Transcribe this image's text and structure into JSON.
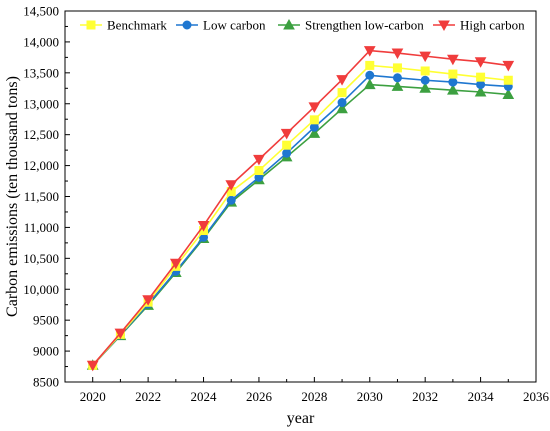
{
  "chart_data": {
    "type": "line",
    "xlabel": "year",
    "ylabel": "Carbon emissions (ten thousand tons)",
    "xlim": [
      2019,
      2036
    ],
    "ylim": [
      8500,
      14500
    ],
    "xticks": [
      2020,
      2022,
      2024,
      2026,
      2028,
      2030,
      2032,
      2034,
      2036
    ],
    "yticks": [
      8500,
      9000,
      9500,
      10000,
      10500,
      11000,
      11500,
      12000,
      12500,
      13000,
      13500,
      14000,
      14500
    ],
    "xtick_labels": [
      "2020",
      "2022",
      "2024",
      "2026",
      "2028",
      "2030",
      "2032",
      "2034",
      "2036"
    ],
    "ytick_labels": [
      "8500",
      "9000",
      "9500",
      "10,000",
      "10,500",
      "11,000",
      "11,500",
      "12,000",
      "12,500",
      "13,000",
      "13,500",
      "14,000",
      "14,500"
    ],
    "grid": false,
    "legend_position": "top",
    "x": [
      2020,
      2021,
      2022,
      2023,
      2024,
      2025,
      2026,
      2027,
      2028,
      2029,
      2030,
      2031,
      2032,
      2033,
      2034,
      2035
    ],
    "series": [
      {
        "name": "Benchmark",
        "color": "#ffff33",
        "marker": "square",
        "values": [
          8770,
          9270,
          9790,
          10370,
          10950,
          11580,
          11920,
          12330,
          12740,
          13180,
          13620,
          13580,
          13530,
          13480,
          13430,
          13380
        ]
      },
      {
        "name": "Low carbon",
        "color": "#1f77d0",
        "marker": "circle",
        "values": [
          8770,
          9260,
          9760,
          10290,
          10840,
          11440,
          11810,
          12200,
          12620,
          13020,
          13460,
          13420,
          13380,
          13350,
          13310,
          13280
        ]
      },
      {
        "name": "Strengthen low-carbon",
        "color": "#3ca040",
        "marker": "triangle-up",
        "values": [
          8770,
          9250,
          9740,
          10270,
          10820,
          11410,
          11770,
          12140,
          12520,
          12920,
          13310,
          13280,
          13250,
          13220,
          13190,
          13150
        ]
      },
      {
        "name": "High carbon",
        "color": "#f03c3c",
        "marker": "triangle-down",
        "values": [
          8770,
          9290,
          9830,
          10420,
          11030,
          11690,
          12100,
          12520,
          12950,
          13390,
          13860,
          13820,
          13770,
          13720,
          13680,
          13620
        ]
      }
    ]
  }
}
